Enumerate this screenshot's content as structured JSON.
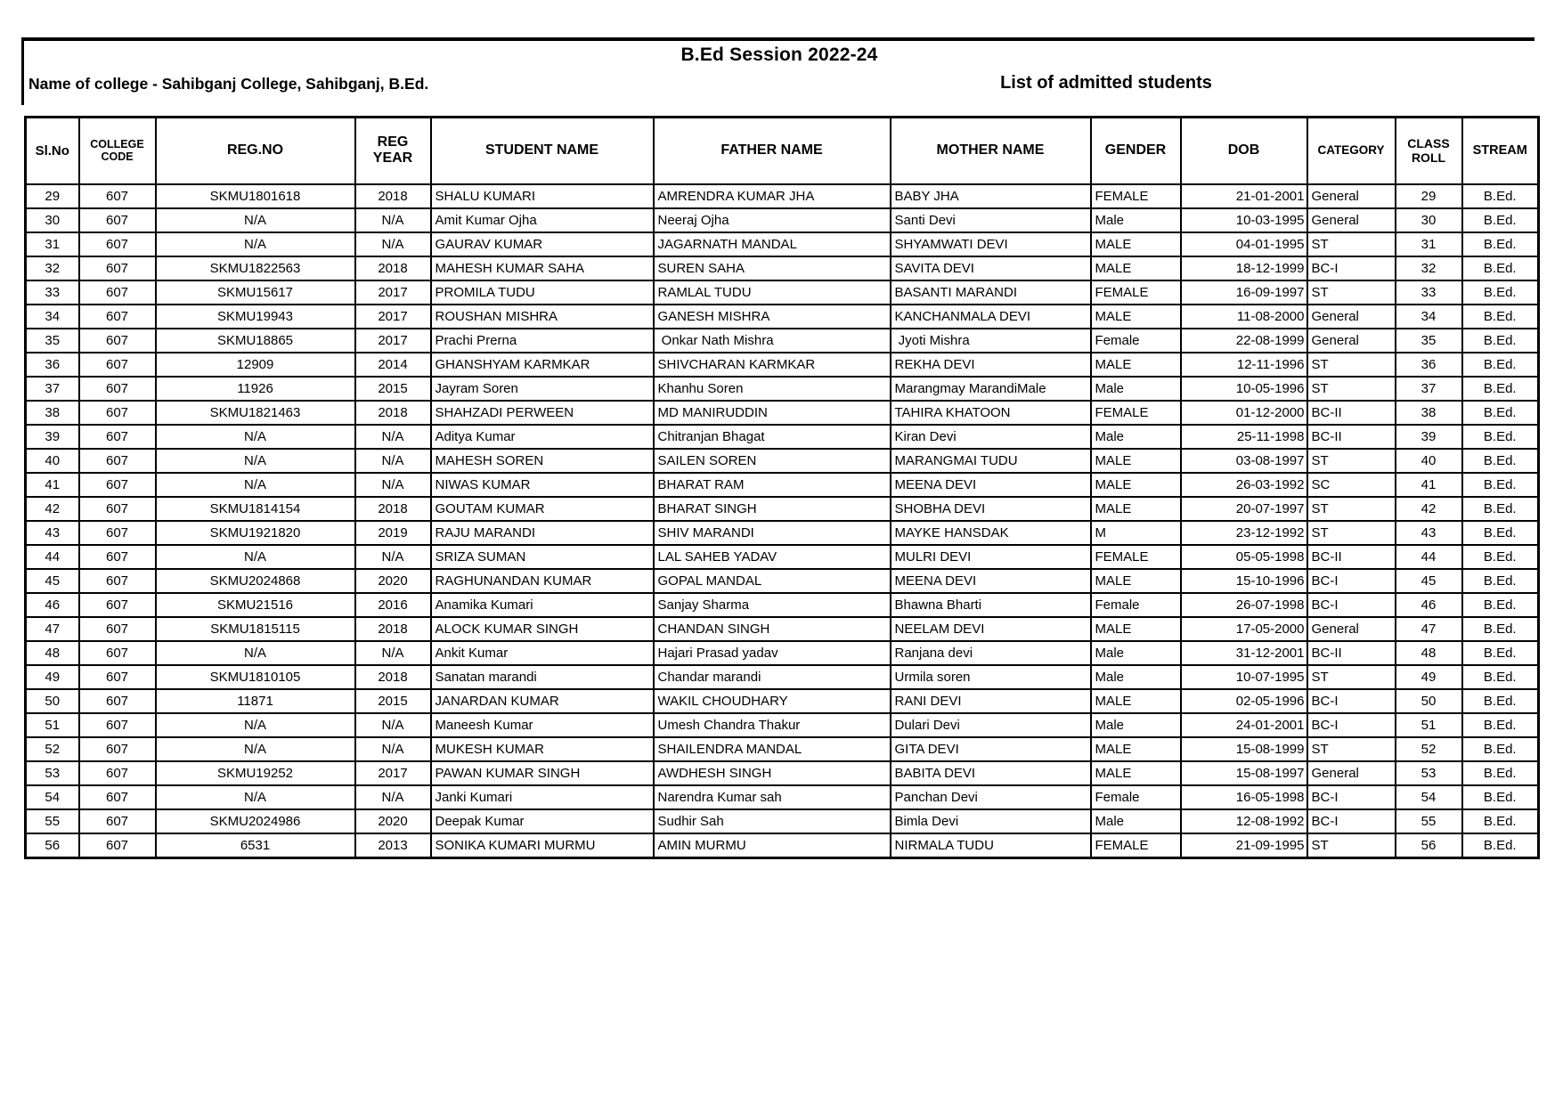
{
  "page": {
    "session_title": "B.Ed Session 2022-24",
    "college_label": "Name of college - Sahibganj College, Sahibganj, B.Ed.",
    "list_label": "List of admitted students"
  },
  "table": {
    "columns": [
      {
        "key": "sl-no",
        "label": "Sl.No"
      },
      {
        "key": "college-code",
        "label": "COLLEGE\nCODE"
      },
      {
        "key": "reg-no",
        "label": "REG.NO"
      },
      {
        "key": "reg-year",
        "label": "REG\nYEAR"
      },
      {
        "key": "student-name",
        "label": "STUDENT NAME"
      },
      {
        "key": "father-name",
        "label": "FATHER NAME"
      },
      {
        "key": "mother-name",
        "label": "MOTHER NAME"
      },
      {
        "key": "gender",
        "label": "GENDER"
      },
      {
        "key": "dob",
        "label": "DOB"
      },
      {
        "key": "category",
        "label": "CATEGORY"
      },
      {
        "key": "class-roll",
        "label": "CLASS\nROLL"
      },
      {
        "key": "stream",
        "label": "STREAM"
      }
    ],
    "rows": [
      [
        "29",
        "607",
        "SKMU1801618",
        "2018",
        "SHALU KUMARI",
        "AMRENDRA KUMAR JHA",
        "BABY JHA",
        "FEMALE",
        "21-01-2001",
        "General",
        "29",
        "B.Ed."
      ],
      [
        "30",
        "607",
        "N/A",
        "N/A",
        "Amit Kumar Ojha",
        "Neeraj Ojha",
        "Santi Devi",
        "Male",
        "10-03-1995",
        "General",
        "30",
        "B.Ed."
      ],
      [
        "31",
        "607",
        "N/A",
        "N/A",
        "GAURAV KUMAR",
        "JAGARNATH MANDAL",
        "SHYAMWATI DEVI",
        "MALE",
        "04-01-1995",
        "ST",
        "31",
        "B.Ed."
      ],
      [
        "32",
        "607",
        "SKMU1822563",
        "2018",
        "MAHESH KUMAR SAHA",
        "SUREN SAHA",
        "SAVITA DEVI",
        "MALE",
        "18-12-1999",
        "BC-I",
        "32",
        "B.Ed."
      ],
      [
        "33",
        "607",
        "SKMU15617",
        "2017",
        "PROMILA TUDU",
        "RAMLAL TUDU",
        "BASANTI MARANDI",
        "FEMALE",
        "16-09-1997",
        "ST",
        "33",
        "B.Ed."
      ],
      [
        "34",
        "607",
        "SKMU19943",
        "2017",
        "ROUSHAN MISHRA",
        "GANESH MISHRA",
        "KANCHANMALA DEVI",
        "MALE",
        "11-08-2000",
        "General",
        "34",
        "B.Ed."
      ],
      [
        "35",
        "607",
        "SKMU18865",
        "2017",
        "Prachi Prerna",
        " Onkar Nath Mishra",
        " Jyoti Mishra",
        "Female",
        "22-08-1999",
        "General",
        "35",
        "B.Ed."
      ],
      [
        "36",
        "607",
        "12909",
        "2014",
        "GHANSHYAM KARMKAR",
        "SHIVCHARAN KARMKAR",
        "REKHA DEVI",
        "MALE",
        "12-11-1996",
        "ST",
        "36",
        "B.Ed."
      ],
      [
        "37",
        "607",
        "11926",
        "2015",
        "Jayram Soren",
        "Khanhu Soren",
        "Marangmay MarandiMale",
        "Male",
        "10-05-1996",
        "ST",
        "37",
        "B.Ed."
      ],
      [
        "38",
        "607",
        "SKMU1821463",
        "2018",
        "SHAHZADI PERWEEN",
        "MD MANIRUDDIN",
        "TAHIRA KHATOON",
        "FEMALE",
        "01-12-2000",
        "BC-II",
        "38",
        "B.Ed."
      ],
      [
        "39",
        "607",
        "N/A",
        "N/A",
        "Aditya Kumar",
        "Chitranjan Bhagat",
        "Kiran Devi",
        "Male",
        "25-11-1998",
        "BC-II",
        "39",
        "B.Ed."
      ],
      [
        "40",
        "607",
        "N/A",
        "N/A",
        "MAHESH SOREN",
        "SAILEN SOREN",
        "MARANGMAI TUDU",
        "MALE",
        "03-08-1997",
        "ST",
        "40",
        "B.Ed."
      ],
      [
        "41",
        "607",
        "N/A",
        "N/A",
        "NIWAS KUMAR",
        "BHARAT RAM",
        "MEENA DEVI",
        "MALE",
        "26-03-1992",
        "SC",
        "41",
        "B.Ed."
      ],
      [
        "42",
        "607",
        "SKMU1814154",
        "2018",
        "GOUTAM KUMAR",
        "BHARAT SINGH",
        "SHOBHA DEVI",
        "MALE",
        "20-07-1997",
        "ST",
        "42",
        "B.Ed."
      ],
      [
        "43",
        "607",
        "SKMU1921820",
        "2019",
        "RAJU MARANDI",
        "SHIV MARANDI",
        "MAYKE HANSDAK",
        "M",
        "23-12-1992",
        "ST",
        "43",
        "B.Ed."
      ],
      [
        "44",
        "607",
        "N/A",
        "N/A",
        "SRIZA SUMAN",
        "LAL SAHEB YADAV",
        "MULRI DEVI",
        "FEMALE",
        "05-05-1998",
        "BC-II",
        "44",
        "B.Ed."
      ],
      [
        "45",
        "607",
        "SKMU2024868",
        "2020",
        "RAGHUNANDAN KUMAR",
        "GOPAL MANDAL",
        "MEENA DEVI",
        "MALE",
        "15-10-1996",
        "BC-I",
        "45",
        "B.Ed."
      ],
      [
        "46",
        "607",
        "SKMU21516",
        "2016",
        "Anamika Kumari",
        "Sanjay Sharma",
        "Bhawna Bharti",
        "Female",
        "26-07-1998",
        "BC-I",
        "46",
        "B.Ed."
      ],
      [
        "47",
        "607",
        "SKMU1815115",
        "2018",
        "ALOCK KUMAR SINGH",
        "CHANDAN SINGH",
        "NEELAM DEVI",
        "MALE",
        "17-05-2000",
        "General",
        "47",
        "B.Ed."
      ],
      [
        "48",
        "607",
        "N/A",
        "N/A",
        "Ankit Kumar",
        "Hajari Prasad yadav",
        "Ranjana devi",
        "Male",
        "31-12-2001",
        "BC-II",
        "48",
        "B.Ed."
      ],
      [
        "49",
        "607",
        "SKMU1810105",
        "2018",
        "Sanatan marandi",
        "Chandar marandi",
        "Urmila soren",
        "Male",
        "10-07-1995",
        "ST",
        "49",
        "B.Ed."
      ],
      [
        "50",
        "607",
        "11871",
        "2015",
        "JANARDAN KUMAR",
        "WAKIL CHOUDHARY",
        "RANI DEVI",
        "MALE",
        "02-05-1996",
        "BC-I",
        "50",
        "B.Ed."
      ],
      [
        "51",
        "607",
        "N/A",
        "N/A",
        "Maneesh Kumar",
        "Umesh Chandra Thakur",
        "Dulari Devi",
        "Male",
        "24-01-2001",
        "BC-I",
        "51",
        "B.Ed."
      ],
      [
        "52",
        "607",
        "N/A",
        "N/A",
        "MUKESH KUMAR",
        "SHAILENDRA MANDAL",
        "GITA DEVI",
        "MALE",
        "15-08-1999",
        "ST",
        "52",
        "B.Ed."
      ],
      [
        "53",
        "607",
        "SKMU19252",
        "2017",
        "PAWAN KUMAR SINGH",
        "AWDHESH SINGH",
        "BABITA DEVI",
        "MALE",
        "15-08-1997",
        "General",
        "53",
        "B.Ed."
      ],
      [
        "54",
        "607",
        "N/A",
        "N/A",
        "Janki Kumari",
        "Narendra Kumar sah",
        "Panchan Devi",
        "Female",
        "16-05-1998",
        "BC-I",
        "54",
        "B.Ed."
      ],
      [
        "55",
        "607",
        "SKMU2024986",
        "2020",
        "Deepak Kumar",
        "Sudhir Sah",
        "Bimla Devi",
        "Male",
        "12-08-1992",
        "BC-I",
        "55",
        "B.Ed."
      ],
      [
        "56",
        "607",
        "6531",
        "2013",
        "SONIKA KUMARI MURMU",
        "AMIN MURMU",
        "NIRMALA TUDU",
        "FEMALE",
        "21-09-1995",
        "ST",
        "56",
        "B.Ed."
      ]
    ]
  }
}
